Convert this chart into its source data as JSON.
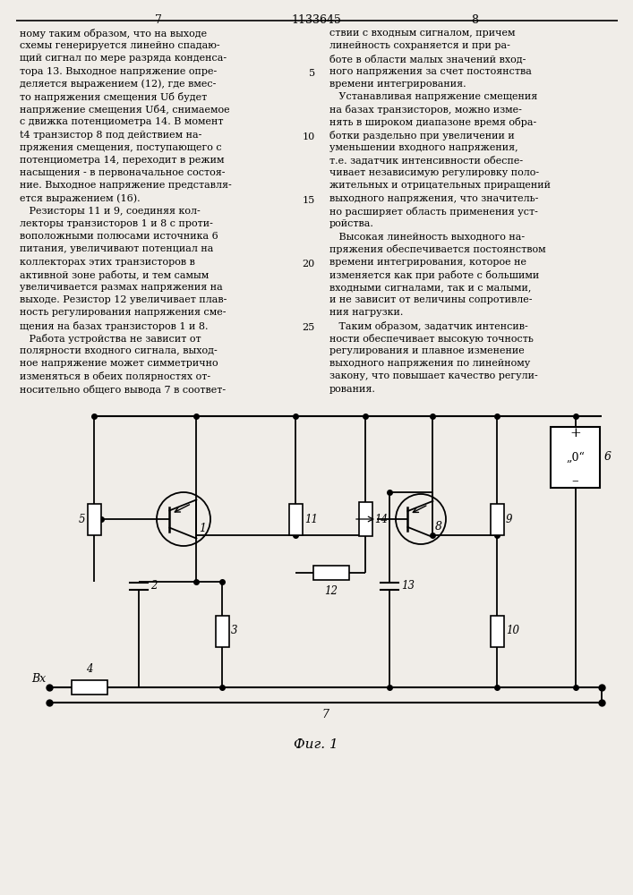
{
  "page_width": 7.07,
  "page_height": 10.0,
  "bg_color": "#f0ede8",
  "header": {
    "left_num": "7",
    "center_num": "1133645",
    "right_num": "8"
  },
  "left_col_lines": [
    "ному таким образом, что на выходе",
    "схемы генерируется линейно спадаю-",
    "щий сигнал по мере разряда конденса-",
    "тора 13. Выходное напряжение опре-",
    "деляется выражением (12), где вмес-",
    "то напряжения смещения Uб будет",
    "напряжение смещения Uб4, снимаемое",
    "с движка потенциометра 14. В момент",
    "t4 транзистор 8 под действием на-",
    "пряжения смещения, поступающего с",
    "потенциометра 14, переходит в режим",
    "насыщения - в первоначальное состоя-",
    "ние. Выходное напряжение представля-",
    "ется выражением (16).",
    "   Резисторы 11 и 9, соединяя кол-",
    "лекторы транзисторов 1 и 8 с проти-",
    "воположными полюсами источника 6",
    "питания, увеличивают потенциал на",
    "коллекторах этих транзисторов в",
    "активной зоне работы, и тем самым",
    "увеличивается размах напряжения на",
    "выходе. Резистор 12 увеличивает плав-",
    "ность регулирования напряжения сме-",
    "щения на базах транзисторов 1 и 8.",
    "   Работа устройства не зависит от",
    "полярности входного сигнала, выход-",
    "ное напряжение может симметрично",
    "изменяться в обеих полярностях от-",
    "носительно общего вывода 7 в соответ-"
  ],
  "right_col_lines": [
    "ствии с входным сигналом, причем",
    "линейность сохраняется и при ра-",
    "боте в области малых значений вход-",
    "ного напряжения за счет постоянства",
    "времени интегрирования.",
    "   Устанавливая напряжение смещения",
    "на базах транзисторов, можно изме-",
    "нять в широком диапазоне время обра-",
    "ботки раздельно при увеличении и",
    "уменьшении входного напряжения,",
    "т.е. задатчик интенсивности обеспе-",
    "чивает независимую регулировку поло-",
    "жительных и отрицательных приращений",
    "выходного напряжения, что значитель-",
    "но расширяет область применения уст-",
    "ройства.",
    "   Высокая линейность выходного на-",
    "пряжения обеспечивается постоянством",
    "времени интегрирования, которое не",
    "изменяется как при работе с большими",
    "входными сигналами, так и с малыми,",
    "и не зависит от величины сопротивле-",
    "ния нагрузки.",
    "   Таким образом, задатчик интенсив-",
    "ности обеспечивает высокую точность",
    "регулирования и плавное изменение",
    "выходного напряжения по линейному",
    "закону, что повышает качество регули-",
    "рования."
  ],
  "line_numbers": [
    {
      "num": "5",
      "row": 4
    },
    {
      "num": "10",
      "row": 9
    },
    {
      "num": "15",
      "row": 14
    },
    {
      "num": "20",
      "row": 19
    },
    {
      "num": "25",
      "row": 24
    }
  ],
  "fig_caption": "Фиг. 1"
}
